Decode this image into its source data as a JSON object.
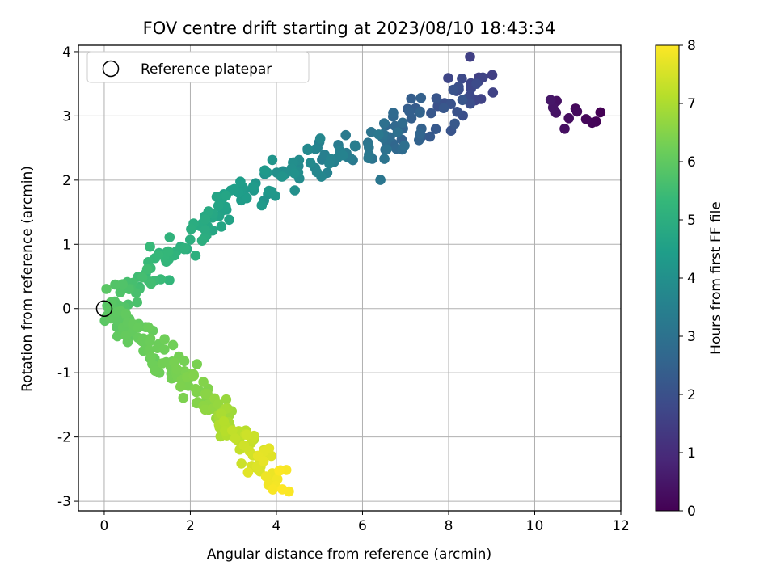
{
  "chart_data": {
    "type": "scatter",
    "title": "FOV centre drift starting at 2023/08/10 18:43:34",
    "xlabel": "Angular distance from reference (arcmin)",
    "ylabel": "Rotation from reference (arcmin)",
    "xlim": [
      -0.6,
      12
    ],
    "ylim": [
      -3.15,
      4.1
    ],
    "xticks": [
      0,
      2,
      4,
      6,
      8,
      10,
      12
    ],
    "yticks": [
      -3,
      -2,
      -1,
      0,
      1,
      2,
      3,
      4
    ],
    "grid": true,
    "legend": {
      "position": "top-left",
      "entries": [
        "Reference platepar"
      ]
    },
    "reference_point": {
      "x": 0,
      "y": 0
    },
    "colorbar": {
      "label": "Hours from first FF file",
      "range": [
        0,
        8
      ],
      "ticks": [
        0,
        1,
        2,
        3,
        4,
        5,
        6,
        7,
        8
      ],
      "colormap": "viridis",
      "stops": [
        "#440154",
        "#482878",
        "#3e4989",
        "#31688e",
        "#26828e",
        "#1f9e89",
        "#35b779",
        "#6ece58",
        "#b5de2b",
        "#fde725"
      ]
    },
    "segments": [
      {
        "from": [
          11.45,
          2.95
        ],
        "to": [
          10.3,
          3.1
        ],
        "t": [
          0.0,
          0.5
        ],
        "spread": [
          0.15,
          0.3
        ],
        "count": 12
      },
      {
        "from": [
          8.9,
          3.55
        ],
        "to": [
          6.0,
          2.4
        ],
        "t": [
          1.5,
          3.2
        ],
        "spread": [
          0.45,
          0.35
        ],
        "count": 75
      },
      {
        "from": [
          6.0,
          2.6
        ],
        "to": [
          3.5,
          1.9
        ],
        "t": [
          3.2,
          4.3
        ],
        "spread": [
          0.45,
          0.3
        ],
        "count": 55
      },
      {
        "from": [
          3.5,
          1.9
        ],
        "to": [
          0.1,
          0.0
        ],
        "t": [
          4.3,
          5.9
        ],
        "spread": [
          0.25,
          0.25
        ],
        "count": 90
      },
      {
        "from": [
          0.1,
          0.0
        ],
        "to": [
          2.3,
          -1.4
        ],
        "t": [
          5.9,
          6.5
        ],
        "spread": [
          0.28,
          0.28
        ],
        "count": 95
      },
      {
        "from": [
          2.3,
          -1.4
        ],
        "to": [
          4.1,
          -2.7
        ],
        "t": [
          6.5,
          8.0
        ],
        "spread": [
          0.3,
          0.25
        ],
        "count": 80
      }
    ]
  }
}
